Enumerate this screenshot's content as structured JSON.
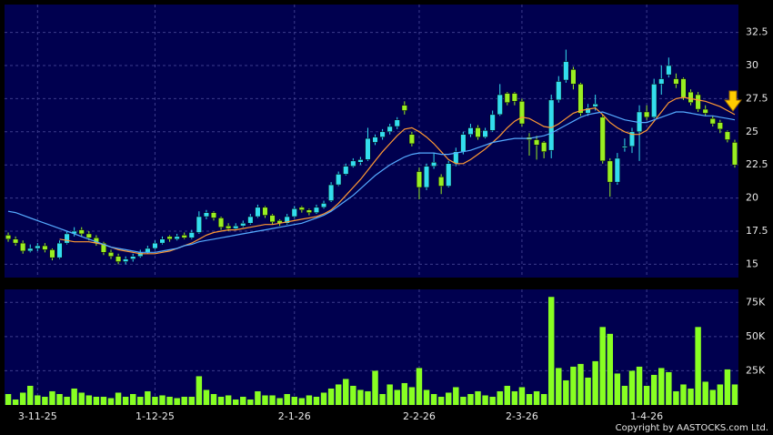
{
  "chart_data": {
    "type": "candlestick",
    "categories": [
      null,
      null,
      null,
      null,
      "3-11-25",
      null,
      null,
      null,
      null,
      null,
      null,
      null,
      null,
      null,
      null,
      null,
      null,
      null,
      null,
      null,
      "1-12-25",
      null,
      null,
      null,
      null,
      null,
      null,
      null,
      null,
      null,
      null,
      null,
      null,
      null,
      null,
      null,
      null,
      null,
      null,
      "2-1-26",
      null,
      null,
      null,
      null,
      null,
      null,
      null,
      null,
      null,
      null,
      null,
      null,
      null,
      null,
      null,
      null,
      "2-2-26",
      null,
      null,
      null,
      null,
      null,
      null,
      null,
      null,
      null,
      null,
      null,
      null,
      null,
      "2-3-26",
      null,
      null,
      null,
      null,
      null,
      null,
      null,
      null,
      null,
      null,
      null,
      null,
      null,
      null,
      null,
      null,
      "1-4-26",
      null,
      null,
      null,
      null,
      null,
      null,
      null,
      null,
      null,
      null,
      null,
      null
    ],
    "ohlc": [
      [
        17.2,
        17.4,
        16.7,
        16.9
      ],
      [
        16.9,
        17.1,
        16.4,
        16.6
      ],
      [
        16.6,
        16.8,
        15.8,
        16.0
      ],
      [
        16.0,
        16.5,
        15.9,
        16.2
      ],
      [
        16.2,
        16.6,
        16.0,
        16.4
      ],
      [
        16.4,
        16.6,
        15.9,
        16.1
      ],
      [
        16.1,
        16.2,
        15.3,
        15.5
      ],
      [
        15.5,
        16.8,
        15.4,
        16.6
      ],
      [
        16.6,
        17.5,
        16.5,
        17.3
      ],
      [
        17.3,
        17.8,
        17.1,
        17.5
      ],
      [
        17.6,
        17.8,
        17.1,
        17.3
      ],
      [
        17.3,
        17.5,
        16.8,
        17.0
      ],
      [
        17.0,
        17.2,
        16.4,
        16.6
      ],
      [
        16.6,
        16.7,
        15.7,
        15.9
      ],
      [
        15.9,
        16.1,
        15.4,
        15.6
      ],
      [
        15.6,
        15.8,
        15.0,
        15.2
      ],
      [
        15.2,
        15.6,
        15.0,
        15.4
      ],
      [
        15.4,
        15.8,
        15.2,
        15.6
      ],
      [
        15.6,
        16.1,
        15.5,
        15.9
      ],
      [
        15.9,
        16.4,
        15.8,
        16.2
      ],
      [
        16.2,
        16.8,
        16.1,
        16.6
      ],
      [
        16.6,
        17.1,
        16.5,
        16.9
      ],
      [
        17.1,
        17.2,
        16.7,
        16.9
      ],
      [
        16.9,
        17.3,
        16.8,
        17.1
      ],
      [
        17.2,
        17.4,
        16.9,
        17.0
      ],
      [
        17.0,
        17.6,
        16.9,
        17.4
      ],
      [
        17.4,
        19.0,
        17.3,
        18.6
      ],
      [
        18.6,
        19.1,
        18.4,
        18.9
      ],
      [
        18.9,
        19.0,
        18.3,
        18.5
      ],
      [
        18.5,
        18.6,
        17.6,
        17.8
      ],
      [
        17.9,
        18.1,
        17.5,
        17.7
      ],
      [
        17.7,
        18.1,
        17.6,
        17.9
      ],
      [
        17.9,
        18.3,
        17.8,
        18.1
      ],
      [
        18.1,
        18.8,
        18.0,
        18.6
      ],
      [
        18.6,
        19.5,
        18.5,
        19.3
      ],
      [
        19.3,
        19.4,
        18.5,
        18.7
      ],
      [
        18.7,
        18.8,
        18.0,
        18.2
      ],
      [
        18.3,
        18.4,
        17.9,
        18.1
      ],
      [
        18.1,
        18.8,
        18.0,
        18.6
      ],
      [
        18.6,
        19.4,
        18.5,
        19.2
      ],
      [
        19.3,
        19.4,
        18.9,
        19.1
      ],
      [
        19.1,
        19.2,
        18.7,
        18.9
      ],
      [
        18.9,
        19.5,
        18.8,
        19.3
      ],
      [
        19.3,
        19.8,
        19.2,
        19.6
      ],
      [
        19.8,
        21.2,
        19.7,
        21.0
      ],
      [
        21.0,
        22.0,
        20.9,
        21.8
      ],
      [
        21.8,
        22.6,
        21.7,
        22.4
      ],
      [
        22.4,
        23.0,
        22.3,
        22.8
      ],
      [
        22.7,
        23.1,
        22.5,
        22.9
      ],
      [
        22.9,
        25.3,
        22.8,
        24.5
      ],
      [
        24.2,
        24.8,
        24.0,
        24.6
      ],
      [
        24.6,
        25.2,
        24.4,
        25.0
      ],
      [
        25.0,
        25.6,
        24.8,
        25.4
      ],
      [
        25.4,
        26.1,
        25.2,
        25.9
      ],
      [
        27.0,
        27.3,
        26.3,
        26.6
      ],
      [
        24.8,
        25.0,
        23.9,
        24.1
      ],
      [
        22.0,
        22.3,
        19.9,
        20.8
      ],
      [
        20.8,
        22.6,
        20.6,
        22.4
      ],
      [
        22.4,
        23.4,
        22.2,
        22.7
      ],
      [
        21.6,
        21.8,
        20.3,
        20.9
      ],
      [
        20.9,
        22.8,
        20.8,
        22.6
      ],
      [
        22.6,
        23.8,
        22.4,
        23.5
      ],
      [
        23.5,
        25.0,
        23.3,
        24.8
      ],
      [
        24.8,
        25.6,
        24.6,
        25.3
      ],
      [
        25.3,
        25.5,
        24.4,
        24.6
      ],
      [
        24.6,
        25.3,
        24.5,
        25.1
      ],
      [
        25.1,
        26.6,
        25.0,
        26.3
      ],
      [
        26.3,
        28.6,
        26.2,
        27.8
      ],
      [
        27.9,
        28.0,
        27.0,
        27.2
      ],
      [
        27.9,
        28.0,
        27.0,
        27.3
      ],
      [
        27.3,
        27.5,
        25.4,
        25.6
      ],
      [
        24.6,
        24.9,
        23.2,
        24.4
      ],
      [
        24.4,
        24.7,
        22.9,
        24.0
      ],
      [
        24.2,
        24.3,
        23.0,
        23.5
      ],
      [
        23.6,
        27.8,
        23.0,
        27.4
      ],
      [
        27.4,
        29.2,
        27.2,
        28.8
      ],
      [
        28.9,
        31.2,
        28.7,
        30.3
      ],
      [
        29.7,
        29.9,
        28.2,
        28.6
      ],
      [
        28.6,
        28.7,
        26.2,
        26.4
      ],
      [
        26.4,
        27.1,
        26.2,
        26.8
      ],
      [
        26.9,
        27.8,
        26.6,
        27.1
      ],
      [
        26.1,
        26.3,
        22.6,
        22.8
      ],
      [
        22.8,
        23.0,
        20.1,
        21.2
      ],
      [
        21.2,
        23.4,
        21.0,
        23.0
      ],
      [
        23.8,
        24.5,
        23.5,
        23.9
      ],
      [
        23.9,
        25.3,
        23.4,
        25.0
      ],
      [
        25.0,
        27.0,
        22.8,
        26.5
      ],
      [
        26.5,
        27.0,
        25.9,
        26.1
      ],
      [
        26.1,
        29.0,
        26.0,
        28.6
      ],
      [
        28.6,
        30.0,
        27.8,
        29.0
      ],
      [
        29.3,
        30.6,
        29.1,
        30.0
      ],
      [
        29.0,
        29.4,
        28.3,
        28.6
      ],
      [
        29.0,
        29.1,
        27.4,
        27.6
      ],
      [
        28.0,
        28.2,
        27.0,
        27.2
      ],
      [
        27.8,
        28.0,
        26.5,
        26.7
      ],
      [
        26.7,
        27.0,
        26.2,
        26.4
      ],
      [
        26.0,
        26.2,
        25.4,
        25.6
      ],
      [
        25.7,
        25.9,
        24.9,
        25.2
      ],
      [
        25.0,
        25.1,
        24.2,
        24.4
      ],
      [
        24.2,
        24.4,
        22.3,
        22.5
      ]
    ],
    "up_color": "#33ddee",
    "down_color": "#99ee22",
    "series": [
      {
        "color": "#ff9933",
        "values": [
          null,
          null,
          null,
          null,
          null,
          null,
          null,
          16.9,
          16.8,
          16.7,
          16.7,
          16.7,
          16.6,
          16.5,
          16.3,
          16.1,
          16.0,
          15.9,
          15.8,
          15.8,
          15.8,
          15.9,
          16.0,
          16.2,
          16.4,
          16.6,
          16.9,
          17.2,
          17.4,
          17.5,
          17.6,
          17.6,
          17.7,
          17.8,
          17.9,
          18.0,
          18.0,
          18.1,
          18.2,
          18.3,
          18.4,
          18.5,
          18.6,
          18.8,
          19.1,
          19.6,
          20.2,
          20.8,
          21.4,
          22.1,
          22.8,
          23.5,
          24.1,
          24.7,
          25.2,
          25.3,
          25.0,
          24.6,
          24.1,
          23.5,
          22.9,
          22.6,
          22.6,
          22.9,
          23.3,
          23.7,
          24.2,
          24.7,
          25.3,
          25.8,
          26.1,
          26.0,
          25.7,
          25.4,
          25.3,
          25.6,
          26.0,
          26.4,
          26.6,
          26.7,
          26.8,
          26.3,
          25.7,
          25.3,
          25.0,
          24.8,
          24.8,
          25.1,
          25.8,
          26.5,
          27.2,
          27.5,
          27.6,
          27.5,
          27.4,
          27.3,
          27.1,
          26.9,
          26.6,
          26.3
        ]
      },
      {
        "color": "#55aaff",
        "values": [
          19.0,
          18.9,
          18.7,
          18.5,
          18.3,
          18.1,
          17.9,
          17.7,
          17.5,
          17.3,
          17.1,
          16.9,
          16.7,
          16.5,
          16.3,
          16.2,
          16.1,
          16.0,
          15.9,
          15.9,
          15.9,
          16.0,
          16.1,
          16.2,
          16.4,
          16.5,
          16.7,
          16.8,
          16.9,
          17.0,
          17.1,
          17.2,
          17.3,
          17.4,
          17.5,
          17.6,
          17.7,
          17.8,
          17.9,
          18.0,
          18.1,
          18.3,
          18.5,
          18.7,
          19.0,
          19.4,
          19.8,
          20.2,
          20.7,
          21.2,
          21.7,
          22.1,
          22.5,
          22.8,
          23.1,
          23.3,
          23.4,
          23.4,
          23.4,
          23.3,
          23.3,
          23.4,
          23.5,
          23.6,
          23.8,
          24.0,
          24.2,
          24.3,
          24.4,
          24.5,
          24.5,
          24.5,
          24.6,
          24.7,
          24.9,
          25.2,
          25.5,
          25.8,
          26.1,
          26.3,
          26.4,
          26.5,
          26.3,
          26.1,
          25.9,
          25.8,
          25.7,
          25.7,
          25.9,
          26.1,
          26.3,
          26.5,
          26.5,
          26.4,
          26.3,
          26.2,
          26.2,
          26.1,
          26.0,
          25.9
        ]
      }
    ],
    "ylim": [
      14,
      34.6
    ],
    "yticks": [
      15,
      17.5,
      20,
      22.5,
      25,
      27.5,
      30,
      32.5
    ],
    "volume": [
      8000,
      4000,
      9000,
      14000,
      7000,
      6000,
      10000,
      8000,
      6000,
      12000,
      9000,
      7000,
      6000,
      6000,
      5000,
      9000,
      6000,
      8000,
      6000,
      10000,
      6000,
      7000,
      6000,
      5000,
      6000,
      6000,
      21000,
      11000,
      8000,
      6000,
      7000,
      4000,
      6000,
      4000,
      10000,
      7000,
      7000,
      5000,
      8000,
      6000,
      5000,
      7000,
      6000,
      9000,
      12000,
      15000,
      19000,
      14000,
      11000,
      10000,
      25000,
      8000,
      15000,
      11000,
      16000,
      13000,
      27000,
      11000,
      8000,
      6000,
      9000,
      13000,
      6000,
      8000,
      10000,
      7000,
      6000,
      10000,
      14000,
      10000,
      13000,
      8000,
      10000,
      8000,
      79000,
      27000,
      18000,
      28000,
      30000,
      20000,
      32000,
      57000,
      52000,
      23000,
      14000,
      25000,
      28000,
      14000,
      22000,
      27000,
      24000,
      10000,
      15000,
      12000,
      57000,
      17000,
      11000,
      15000,
      26000,
      15000
    ],
    "volume_color": "#88ff22",
    "y2lim": [
      0,
      84500
    ],
    "y2ticks": [
      {
        "value": 25000,
        "label": "25K"
      },
      {
        "value": 50000,
        "label": "50K"
      },
      {
        "value": 75000,
        "label": "75K"
      }
    ],
    "grid": true,
    "copyright": "Copyright by AASTOCKS.com Ltd."
  }
}
